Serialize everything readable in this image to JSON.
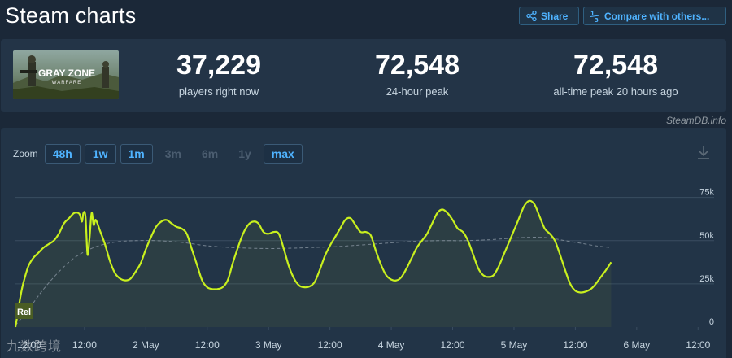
{
  "page": {
    "title": "Steam charts"
  },
  "toolbar": {
    "share_label": "Share",
    "compare_label": "Compare with others..."
  },
  "game": {
    "logo_text": "GRAY ZONE",
    "logo_subtext": "WARFARE"
  },
  "stats": [
    {
      "value": "37,229",
      "label": "players right now"
    },
    {
      "value": "72,548",
      "label": "24-hour peak"
    },
    {
      "value": "72,548",
      "label": "all-time peak 20 hours ago"
    }
  ],
  "credit": "SteamDB.info",
  "zoom": {
    "label": "Zoom",
    "options": [
      {
        "label": "48h",
        "active": true
      },
      {
        "label": "1w",
        "active": true
      },
      {
        "label": "1m",
        "active": true
      },
      {
        "label": "3m",
        "active": false
      },
      {
        "label": "6m",
        "active": false
      },
      {
        "label": "1y",
        "active": false
      },
      {
        "label": "max",
        "active": true
      }
    ]
  },
  "watermark": "九数跨境",
  "colors": {
    "players_line": "#c9f01e",
    "average_line": "#8a96a3",
    "grid": "#3a4d60",
    "axis_text": "#c7d5e0",
    "active_button_text": "#4fb3ff"
  },
  "chart_data": {
    "type": "line",
    "x_ticks": [
      "12:00",
      "2 May",
      "12:00",
      "3 May",
      "12:00",
      "4 May",
      "12:00",
      "5 May",
      "12:00",
      "6 May",
      "12:00"
    ],
    "x_tick_hours": [
      36,
      48,
      60,
      72,
      84,
      96,
      108,
      120,
      132,
      144,
      156
    ],
    "xlim_hours": [
      22.5,
      158.5
    ],
    "y_ticks": [
      "0",
      "25k",
      "50k",
      "75k"
    ],
    "ylim": [
      0,
      80000
    ],
    "grid": true,
    "annotation": "Rel",
    "series": [
      {
        "points": [
          [
            22.5,
            0
          ],
          [
            23,
            9000
          ],
          [
            23.5,
            18000
          ],
          [
            24,
            25000
          ],
          [
            25,
            35000
          ],
          [
            26,
            40000
          ],
          [
            27,
            43000
          ],
          [
            28,
            46000
          ],
          [
            29,
            48000
          ],
          [
            30,
            50000
          ],
          [
            31,
            54000
          ],
          [
            32,
            60000
          ],
          [
            33,
            63000
          ],
          [
            34,
            66000
          ],
          [
            35,
            65500
          ],
          [
            35.5,
            61000
          ],
          [
            35.8,
            66000
          ],
          [
            36.2,
            64000
          ],
          [
            36.6,
            42000
          ],
          [
            37,
            52000
          ],
          [
            37.4,
            66000
          ],
          [
            37.8,
            59000
          ],
          [
            38.2,
            62000
          ],
          [
            39,
            56000
          ],
          [
            40,
            48000
          ],
          [
            41,
            38000
          ],
          [
            42,
            31000
          ],
          [
            43,
            28000
          ],
          [
            44,
            27000
          ],
          [
            45,
            28000
          ],
          [
            46,
            32000
          ],
          [
            47,
            37000
          ],
          [
            48,
            45000
          ],
          [
            49,
            52000
          ],
          [
            50,
            58000
          ],
          [
            51,
            61000
          ],
          [
            52,
            62000
          ],
          [
            53,
            60000
          ],
          [
            54,
            58000
          ],
          [
            55,
            57000
          ],
          [
            56,
            54000
          ],
          [
            57,
            45000
          ],
          [
            58,
            36000
          ],
          [
            59,
            27000
          ],
          [
            60,
            23000
          ],
          [
            61,
            22000
          ],
          [
            62,
            22000
          ],
          [
            63,
            23000
          ],
          [
            64,
            27000
          ],
          [
            65,
            37000
          ],
          [
            66,
            46000
          ],
          [
            67,
            54000
          ],
          [
            68,
            59000
          ],
          [
            69,
            61000
          ],
          [
            70,
            60000
          ],
          [
            71,
            55000
          ],
          [
            72,
            54000
          ],
          [
            73,
            55000
          ],
          [
            74,
            54000
          ],
          [
            75,
            45000
          ],
          [
            76,
            35000
          ],
          [
            77,
            28000
          ],
          [
            78,
            24000
          ],
          [
            79,
            23000
          ],
          [
            80,
            23500
          ],
          [
            81,
            26000
          ],
          [
            82,
            33000
          ],
          [
            83,
            41000
          ],
          [
            84,
            47000
          ],
          [
            85,
            52000
          ],
          [
            86,
            57000
          ],
          [
            87,
            62000
          ],
          [
            88,
            63000
          ],
          [
            89,
            59000
          ],
          [
            90,
            55000
          ],
          [
            91,
            55000
          ],
          [
            92,
            53000
          ],
          [
            93,
            44000
          ],
          [
            94,
            36000
          ],
          [
            95,
            30000
          ],
          [
            96,
            27500
          ],
          [
            97,
            27000
          ],
          [
            98,
            29000
          ],
          [
            99,
            34000
          ],
          [
            100,
            40000
          ],
          [
            101,
            46000
          ],
          [
            102,
            50000
          ],
          [
            103,
            54000
          ],
          [
            104,
            60000
          ],
          [
            105,
            66000
          ],
          [
            106,
            68000
          ],
          [
            107,
            66000
          ],
          [
            108,
            62000
          ],
          [
            109,
            57000
          ],
          [
            110,
            55000
          ],
          [
            111,
            50000
          ],
          [
            112,
            42000
          ],
          [
            113,
            34000
          ],
          [
            114,
            30000
          ],
          [
            115,
            29000
          ],
          [
            116,
            30000
          ],
          [
            117,
            35000
          ],
          [
            118,
            42000
          ],
          [
            119,
            49000
          ],
          [
            120,
            56000
          ],
          [
            121,
            63000
          ],
          [
            122,
            70000
          ],
          [
            123,
            73000
          ],
          [
            124,
            71000
          ],
          [
            125,
            64000
          ],
          [
            126,
            57000
          ],
          [
            127,
            54000
          ],
          [
            128,
            50000
          ],
          [
            129,
            42000
          ],
          [
            130,
            33000
          ],
          [
            131,
            25000
          ],
          [
            132,
            21000
          ],
          [
            133,
            20000
          ],
          [
            134,
            20500
          ],
          [
            135,
            22000
          ],
          [
            136,
            25000
          ],
          [
            137,
            29000
          ],
          [
            138,
            33000
          ],
          [
            139,
            37500
          ]
        ]
      },
      {
        "points": [
          [
            22.5,
            1000
          ],
          [
            25,
            10000
          ],
          [
            28,
            22000
          ],
          [
            31,
            32000
          ],
          [
            34,
            40000
          ],
          [
            37,
            45000
          ],
          [
            40,
            48000
          ],
          [
            43,
            49500
          ],
          [
            46,
            50000
          ],
          [
            50,
            50000
          ],
          [
            55,
            49000
          ],
          [
            60,
            47000
          ],
          [
            65,
            46000
          ],
          [
            70,
            45500
          ],
          [
            75,
            45500
          ],
          [
            80,
            46000
          ],
          [
            85,
            46500
          ],
          [
            90,
            47500
          ],
          [
            95,
            48500
          ],
          [
            100,
            49500
          ],
          [
            105,
            50000
          ],
          [
            110,
            50000
          ],
          [
            115,
            50500
          ],
          [
            120,
            51500
          ],
          [
            124,
            52000
          ],
          [
            127,
            51500
          ],
          [
            130,
            50000
          ],
          [
            133,
            48500
          ],
          [
            136,
            47000
          ],
          [
            139,
            46000
          ]
        ]
      }
    ]
  }
}
